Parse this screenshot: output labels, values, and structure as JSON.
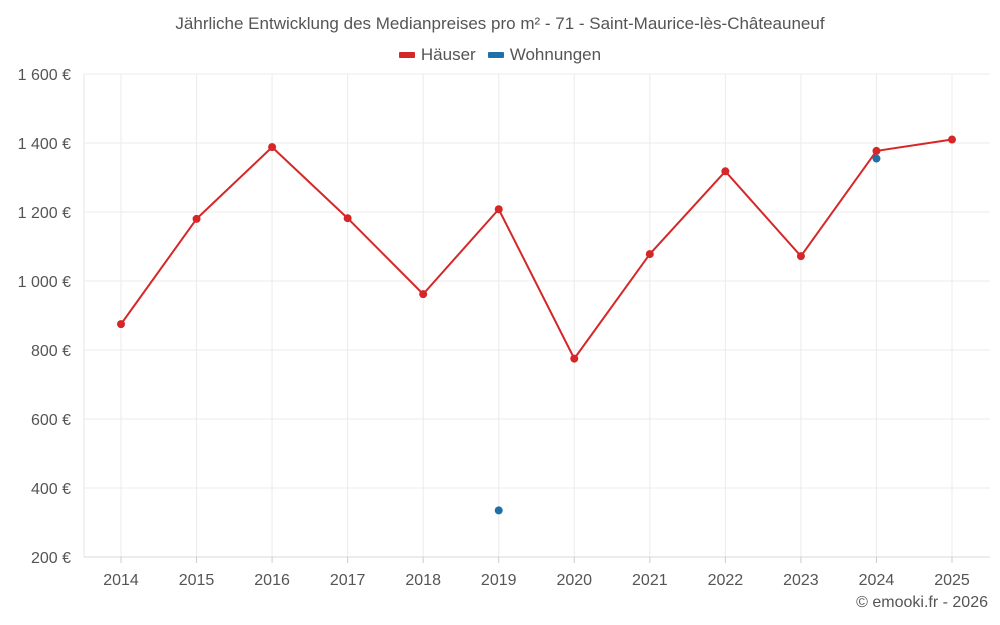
{
  "chart_data": {
    "type": "line",
    "title": "Jährliche Entwicklung des Medianpreises pro m² - 71 - Saint-Maurice-lès-Châteauneuf",
    "categories": [
      "2014",
      "2015",
      "2016",
      "2017",
      "2018",
      "2019",
      "2020",
      "2021",
      "2022",
      "2023",
      "2024",
      "2025"
    ],
    "ylim": [
      200,
      1600
    ],
    "yticks": [
      200,
      400,
      600,
      800,
      1000,
      1200,
      1400,
      1600
    ],
    "ytick_labels": [
      "200 €",
      "400 €",
      "600 €",
      "800 €",
      "1 000 €",
      "1 200 €",
      "1 400 €",
      "1 600 €"
    ],
    "grid": true,
    "legend_position": "top-center",
    "series": [
      {
        "name": "Häuser",
        "color": "#d62728",
        "line": true,
        "values": [
          875,
          1180,
          1388,
          1182,
          962,
          1208,
          775,
          1078,
          1318,
          1072,
          1377,
          1410
        ]
      },
      {
        "name": "Wohnungen",
        "color": "#1f6fa8",
        "line": false,
        "values": [
          null,
          null,
          null,
          null,
          null,
          335,
          null,
          null,
          null,
          null,
          1355,
          null
        ]
      }
    ]
  },
  "credit": "© emooki.fr - 2026"
}
